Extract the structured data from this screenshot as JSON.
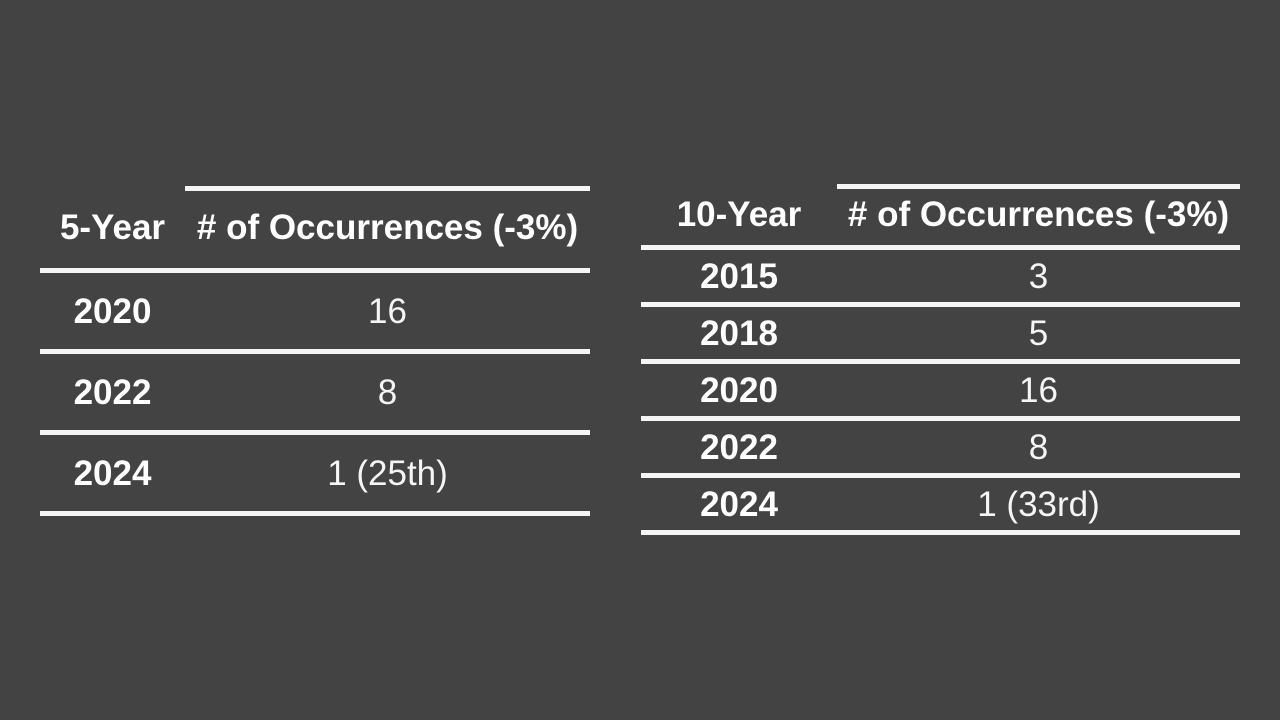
{
  "colors": {
    "background": "#434343",
    "line": "#f5f5f5",
    "header_text": "#ffffff",
    "value_text": "#f5f5f5"
  },
  "tables": {
    "left": {
      "period_header": "5-Year",
      "occurrences_header": "# of Occurrences (-3%)",
      "rows": [
        {
          "year": "2020",
          "occurrences": "16"
        },
        {
          "year": "2022",
          "occurrences": "8"
        },
        {
          "year": "2024",
          "occurrences": "1 (25th)"
        }
      ]
    },
    "right": {
      "period_header": "10-Year",
      "occurrences_header": "# of Occurrences (-3%)",
      "rows": [
        {
          "year": "2015",
          "occurrences": "3"
        },
        {
          "year": "2018",
          "occurrences": "5"
        },
        {
          "year": "2020",
          "occurrences": "16"
        },
        {
          "year": "2022",
          "occurrences": "8"
        },
        {
          "year": "2024",
          "occurrences": "1 (33rd)"
        }
      ]
    }
  },
  "chart_data": [
    {
      "type": "table",
      "title": "5-Year occurrences of -3% days",
      "columns": [
        "5-Year",
        "# of Occurrences (-3%)"
      ],
      "rows": [
        [
          "2020",
          "16"
        ],
        [
          "2022",
          "8"
        ],
        [
          "2024",
          "1 (25th)"
        ]
      ]
    },
    {
      "type": "table",
      "title": "10-Year occurrences of -3% days",
      "columns": [
        "10-Year",
        "# of Occurrences (-3%)"
      ],
      "rows": [
        [
          "2015",
          "3"
        ],
        [
          "2018",
          "5"
        ],
        [
          "2020",
          "16"
        ],
        [
          "2022",
          "8"
        ],
        [
          "2024",
          "1 (33rd)"
        ]
      ]
    }
  ]
}
